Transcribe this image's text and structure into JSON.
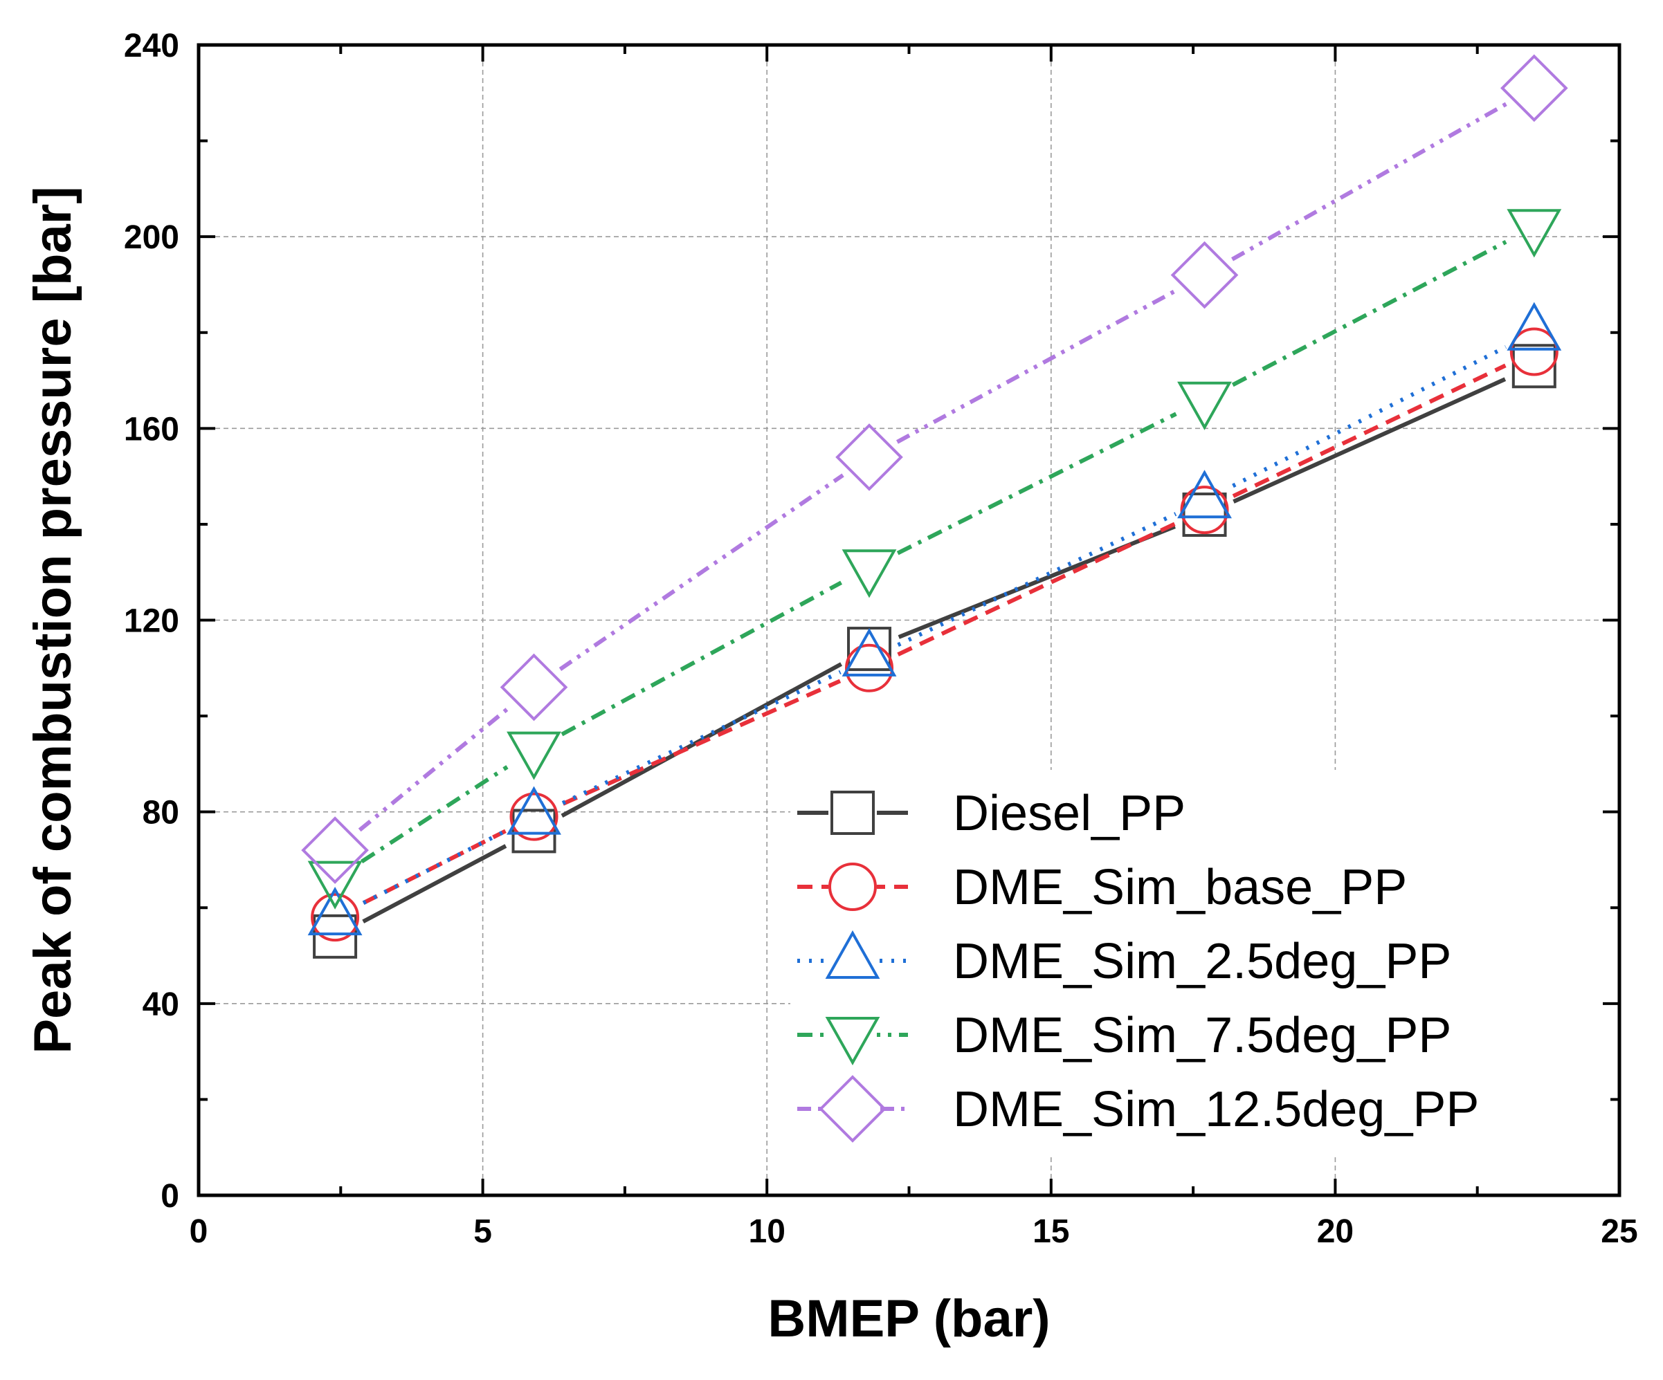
{
  "chart_data": {
    "type": "line",
    "title": "",
    "xlabel": "BMEP (bar)",
    "ylabel": "Peak of combustion pressure [bar]",
    "xlim": [
      0,
      25
    ],
    "ylim": [
      0,
      240
    ],
    "xticks": [
      0,
      5,
      10,
      15,
      20,
      25
    ],
    "yticks": [
      0,
      40,
      80,
      120,
      160,
      200,
      240
    ],
    "grid": true,
    "legend_position": "bottom-right",
    "series": [
      {
        "name": "Diesel_PP",
        "color": "#404040",
        "marker": "square",
        "dash": "solid",
        "x": [
          2.4,
          5.9,
          11.8,
          17.7,
          23.5
        ],
        "y": [
          54,
          76,
          114,
          142,
          173
        ]
      },
      {
        "name": "DME_Sim_base_PP",
        "color": "#e8303a",
        "marker": "circle",
        "dash": "dash",
        "x": [
          2.4,
          5.9,
          11.8,
          17.7,
          23.5
        ],
        "y": [
          58,
          79,
          110,
          143,
          176
        ]
      },
      {
        "name": "DME_Sim_2.5deg_PP",
        "color": "#1f6fd6",
        "marker": "triangle-up",
        "dash": "dot",
        "x": [
          2.4,
          5.9,
          11.8,
          17.7,
          23.5
        ],
        "y": [
          58,
          79,
          112,
          145,
          180
        ]
      },
      {
        "name": "DME_Sim_7.5deg_PP",
        "color": "#2ea65a",
        "marker": "triangle-down",
        "dash": "dashdot",
        "x": [
          2.4,
          5.9,
          11.8,
          17.7,
          23.5
        ],
        "y": [
          66,
          93,
          131,
          166,
          202
        ]
      },
      {
        "name": "DME_Sim_12.5deg_PP",
        "color": "#b07ae0",
        "marker": "diamond",
        "dash": "dashdotdot",
        "x": [
          2.4,
          5.9,
          11.8,
          17.7,
          23.5
        ],
        "y": [
          72,
          106,
          154,
          192,
          231
        ]
      }
    ]
  }
}
